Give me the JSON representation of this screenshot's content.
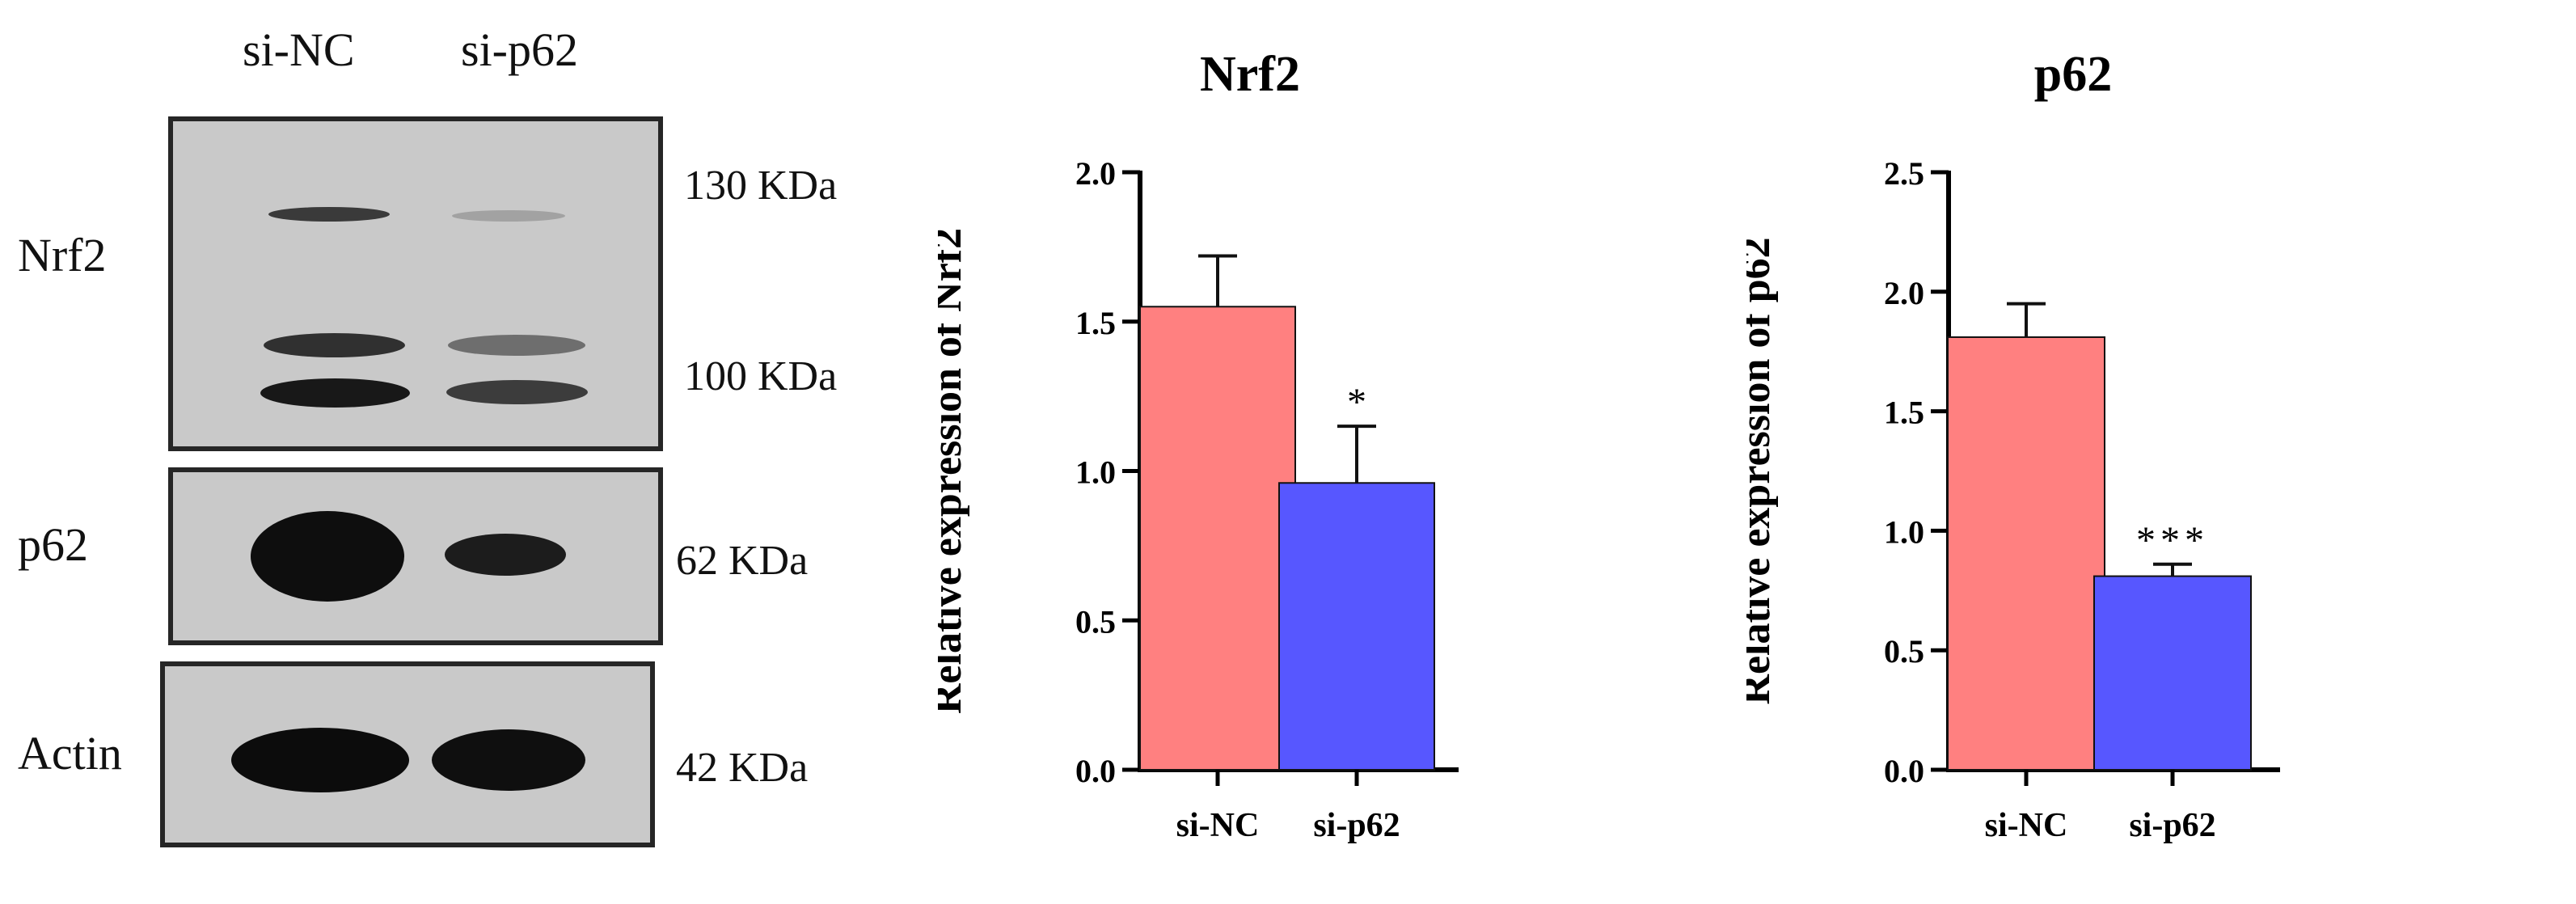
{
  "western_blot": {
    "lanes": [
      "si-NC",
      "si-p62"
    ],
    "rows": [
      {
        "protein": "Nrf2",
        "markers": [
          "130 KDa",
          "100 KDa"
        ]
      },
      {
        "protein": "p62",
        "markers": [
          "62 KDa"
        ]
      },
      {
        "protein": "Actin",
        "markers": [
          "42 KDa"
        ]
      }
    ]
  },
  "chart_data": [
    {
      "type": "bar",
      "title": "Nrf2",
      "xlabel": "",
      "ylabel": "Relative expression of Nrf2",
      "categories": [
        "si-NC",
        "si-p62"
      ],
      "values": [
        1.55,
        0.96
      ],
      "errors": [
        0.17,
        0.19
      ],
      "significance": [
        "",
        "*"
      ],
      "colors": [
        "#ff8080",
        "#5757ff"
      ],
      "ylim": [
        0,
        2.0
      ],
      "yticks": [
        "0.0",
        "0.5",
        "1.0",
        "1.5",
        "2.0"
      ],
      "ytick_values": [
        0,
        0.5,
        1.0,
        1.5,
        2.0
      ]
    },
    {
      "type": "bar",
      "title": "p62",
      "xlabel": "",
      "ylabel": "Relative expression of p62",
      "categories": [
        "si-NC",
        "si-p62"
      ],
      "values": [
        1.81,
        0.81
      ],
      "errors": [
        0.14,
        0.05
      ],
      "significance": [
        "",
        "***"
      ],
      "colors": [
        "#ff8080",
        "#5757ff"
      ],
      "ylim": [
        0,
        2.5
      ],
      "yticks": [
        "0.0",
        "0.5",
        "1.0",
        "1.5",
        "2.0",
        "2.5"
      ],
      "ytick_values": [
        0,
        0.5,
        1.0,
        1.5,
        2.0,
        2.5
      ]
    }
  ]
}
